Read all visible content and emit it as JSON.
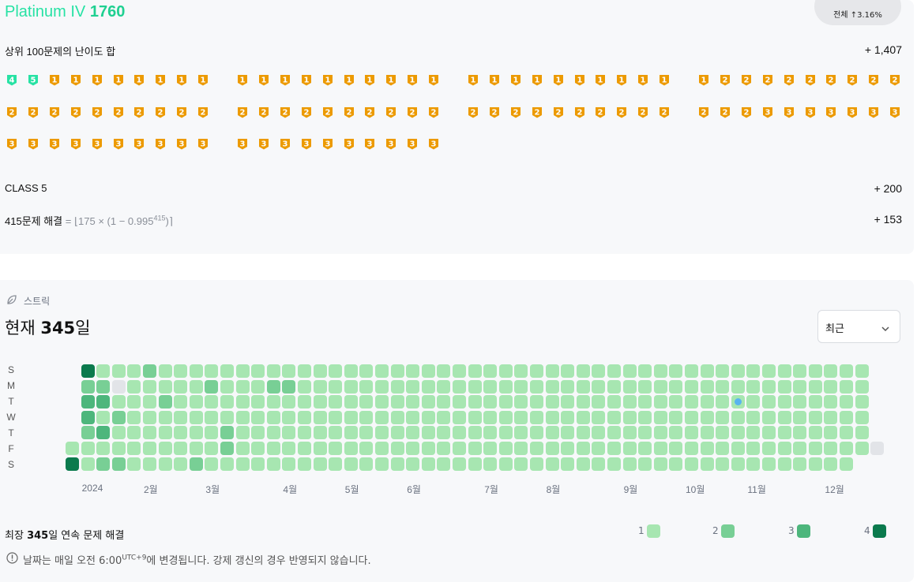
{
  "rating": {
    "tier_prefix": "Platinum IV",
    "tier_value": "1760",
    "rank_number": "",
    "rank_pct": "전체 ↑3.16%",
    "rows": [
      {
        "label": "상위 100문제의 난이도 합",
        "value": "+ 1,407"
      },
      {
        "label": "CLASS 5",
        "value": "+ 200"
      }
    ],
    "solved": {
      "label": "415문제 해결",
      "formula_pre": " = ⌊175 × (1 − 0.995",
      "formula_exp": "415",
      "formula_post": ")⌉",
      "value": "+ 153"
    }
  },
  "badges": {
    "rows": [
      [
        "4",
        "5",
        "1",
        "1",
        "1",
        "1",
        "1",
        "1",
        "1",
        "1",
        "1",
        "1",
        "1",
        "1",
        "1",
        "1",
        "1",
        "1",
        "1",
        "1",
        "1",
        "1",
        "1",
        "1",
        "1",
        "1",
        "1",
        "1",
        "1",
        "1",
        "1",
        "2",
        "2",
        "2",
        "2",
        "2",
        "2",
        "2",
        "2",
        "2"
      ],
      [
        "2",
        "2",
        "2",
        "2",
        "2",
        "2",
        "2",
        "2",
        "2",
        "2",
        "2",
        "2",
        "2",
        "2",
        "2",
        "2",
        "2",
        "2",
        "2",
        "2",
        "2",
        "2",
        "2",
        "2",
        "2",
        "2",
        "2",
        "2",
        "2",
        "2",
        "2",
        "2",
        "2",
        "3",
        "3",
        "3",
        "3",
        "3",
        "3",
        "3"
      ],
      [
        "3",
        "3",
        "3",
        "3",
        "3",
        "3",
        "3",
        "3",
        "3",
        "3",
        "3",
        "3",
        "3",
        "3",
        "3",
        "3",
        "3",
        "3",
        "3",
        "3"
      ]
    ],
    "colors": {
      "1": "#ec9a00",
      "2": "#ec9a00",
      "3": "#ec9a00",
      "4": "#27e2a4",
      "5": "#27e2a4"
    }
  },
  "streak": {
    "heading": "스트릭",
    "current_prefix": "현재 ",
    "current_value": "345",
    "current_suffix": "일",
    "dropdown_value": "최근",
    "day_labels": [
      "S",
      "M",
      "T",
      "W",
      "T",
      "F",
      "S"
    ],
    "months": [
      {
        "label": "2024",
        "week": 1
      },
      {
        "label": "2월",
        "week": 5
      },
      {
        "label": "3월",
        "week": 9
      },
      {
        "label": "4월",
        "week": 14
      },
      {
        "label": "5월",
        "week": 18
      },
      {
        "label": "6월",
        "week": 22
      },
      {
        "label": "7월",
        "week": 27
      },
      {
        "label": "8월",
        "week": 31
      },
      {
        "label": "9월",
        "week": 36
      },
      {
        "label": "10월",
        "week": 40
      },
      {
        "label": "11월",
        "week": 44
      },
      {
        "label": "12월",
        "week": 49
      }
    ],
    "longest_prefix": "최장 ",
    "longest_value": "345",
    "longest_suffix": "일 연속 문제 해결",
    "legend": [
      {
        "label": "1",
        "color": "#a7e6b1"
      },
      {
        "label": "2",
        "color": "#78cf95"
      },
      {
        "label": "3",
        "color": "#4db67c"
      },
      {
        "label": "4",
        "color": "#0b7a4d"
      }
    ],
    "note_pre": "날짜는 매일 오전 6:00",
    "note_sup": "UTC+9",
    "note_post": "에 변경됩니다. 강제 갱신의 경우 반영되지 않습니다.",
    "colors": {
      "empty": "#e2e4e8",
      "today_dot": "#5ab4f0"
    }
  }
}
